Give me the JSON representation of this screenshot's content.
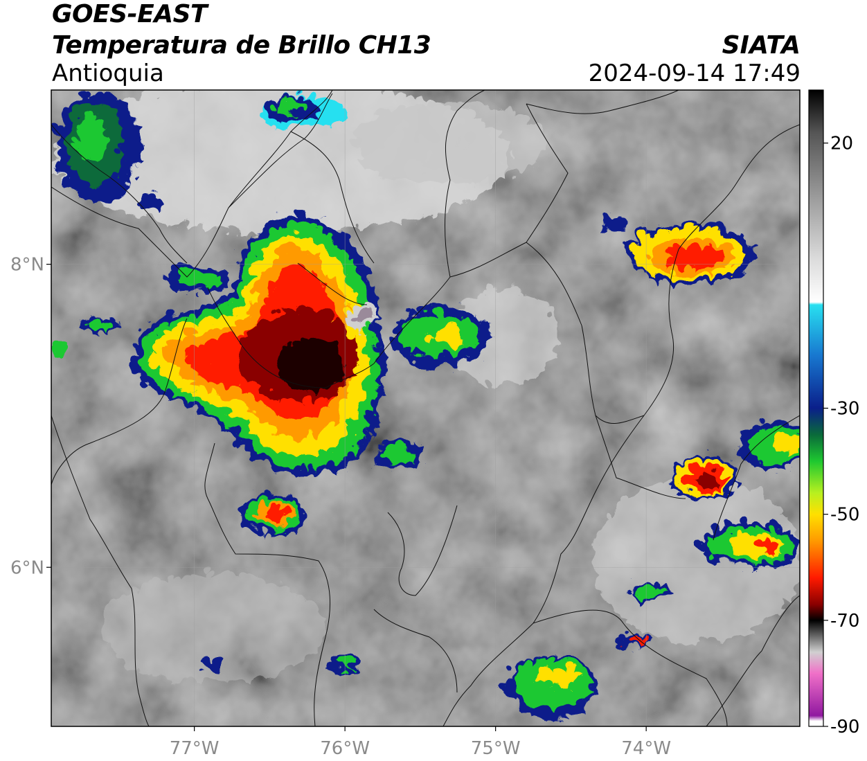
{
  "header": {
    "title": "GOES-EAST",
    "subtitle": "Temperatura de Brillo CH13",
    "region": "Antioquia",
    "organization": "SIATA",
    "timestamp": "2024-09-14 17:49"
  },
  "map": {
    "lon_ticks": [
      {
        "value": -77,
        "label": "77°W"
      },
      {
        "value": -76,
        "label": "76°W"
      },
      {
        "value": -75,
        "label": "75°W"
      },
      {
        "value": -74,
        "label": "74°W"
      }
    ],
    "lat_ticks": [
      {
        "value": 8,
        "label": "8°N"
      },
      {
        "value": 6,
        "label": "6°N"
      }
    ],
    "lon_range": [
      -77.95,
      -72.98
    ],
    "lat_range": [
      4.95,
      9.15
    ],
    "gridlines": true
  },
  "colorbar": {
    "range": [
      -90,
      30
    ],
    "ticks": [
      {
        "value": 20,
        "label": "20"
      },
      {
        "value": -30,
        "label": "-30"
      },
      {
        "value": -50,
        "label": "-50"
      },
      {
        "value": -70,
        "label": "-70"
      },
      {
        "value": -90,
        "label": "-90"
      }
    ],
    "stops": [
      {
        "value": 30,
        "color": "#000000"
      },
      {
        "value": 22,
        "color": "#555555"
      },
      {
        "value": 10,
        "color": "#9a9a9a"
      },
      {
        "value": -2,
        "color": "#dcdcdc"
      },
      {
        "value": -10,
        "color": "#ffffff"
      },
      {
        "value": -10.5,
        "color": "#28e0f0"
      },
      {
        "value": -20,
        "color": "#1878d0"
      },
      {
        "value": -30,
        "color": "#0a1f8a"
      },
      {
        "value": -35,
        "color": "#0a6a3a"
      },
      {
        "value": -40,
        "color": "#1ec830"
      },
      {
        "value": -46,
        "color": "#b8f020"
      },
      {
        "value": -50,
        "color": "#ffe000"
      },
      {
        "value": -55,
        "color": "#ff9a00"
      },
      {
        "value": -62,
        "color": "#ff1a00"
      },
      {
        "value": -67,
        "color": "#8a0000"
      },
      {
        "value": -70,
        "color": "#000000"
      },
      {
        "value": -76,
        "color": "#d0d0d0"
      },
      {
        "value": -80,
        "color": "#f070c8"
      },
      {
        "value": -88,
        "color": "#9018a0"
      },
      {
        "value": -89,
        "color": "#ffffff"
      }
    ]
  }
}
